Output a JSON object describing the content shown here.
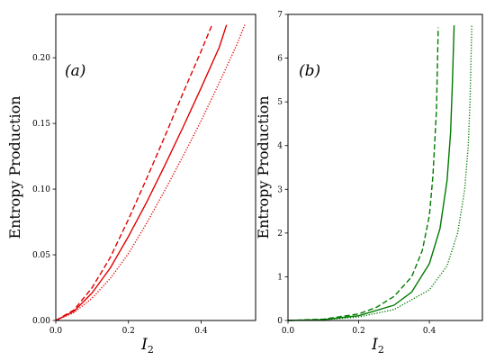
{
  "chart_data": [
    {
      "type": "line",
      "panel_label": "(a)",
      "xlabel": "I2",
      "xlabel_main": "I",
      "xlabel_sub": "2",
      "ylabel": "Entropy Production",
      "xlim": [
        0.0,
        0.55
      ],
      "ylim": [
        0.0,
        0.233
      ],
      "xticks": [
        0.0,
        0.2,
        0.4
      ],
      "xtick_labels": [
        "0.0",
        "0.2",
        "0.4"
      ],
      "yticks": [
        0.0,
        0.05,
        0.1,
        0.15,
        0.2
      ],
      "ytick_labels": [
        "0.00",
        "0.05",
        "0.10",
        "0.15",
        "0.20"
      ],
      "color": "#e00000",
      "series": [
        {
          "style": "dashed",
          "x": [
            0.0,
            0.05,
            0.1,
            0.15,
            0.2,
            0.25,
            0.3,
            0.35,
            0.4,
            0.43
          ],
          "y": [
            0.0,
            0.008,
            0.025,
            0.048,
            0.077,
            0.108,
            0.14,
            0.173,
            0.205,
            0.225
          ]
        },
        {
          "style": "solid",
          "x": [
            0.0,
            0.05,
            0.1,
            0.15,
            0.2,
            0.25,
            0.3,
            0.35,
            0.4,
            0.45,
            0.47
          ],
          "y": [
            0.0,
            0.007,
            0.021,
            0.04,
            0.064,
            0.09,
            0.118,
            0.147,
            0.177,
            0.208,
            0.225
          ]
        },
        {
          "style": "dotted",
          "x": [
            0.0,
            0.05,
            0.1,
            0.15,
            0.2,
            0.25,
            0.3,
            0.35,
            0.4,
            0.45,
            0.5,
            0.52
          ],
          "y": [
            0.0,
            0.006,
            0.017,
            0.032,
            0.051,
            0.074,
            0.099,
            0.125,
            0.152,
            0.181,
            0.211,
            0.225
          ]
        }
      ]
    },
    {
      "type": "line",
      "panel_label": "(b)",
      "xlabel": "I2",
      "xlabel_main": "I",
      "xlabel_sub": "2",
      "ylabel": "Entropy Production",
      "xlim": [
        0.0,
        0.55
      ],
      "ylim": [
        0.0,
        7.0
      ],
      "xticks": [
        0.0,
        0.2,
        0.4
      ],
      "xtick_labels": [
        "0.0",
        "0.2",
        "0.4"
      ],
      "yticks": [
        0,
        1,
        2,
        3,
        4,
        5,
        6,
        7
      ],
      "ytick_labels": [
        "0",
        "1",
        "2",
        "3",
        "4",
        "5",
        "6",
        "7"
      ],
      "color": "#007a00",
      "series": [
        {
          "style": "dashed",
          "x": [
            0.0,
            0.1,
            0.2,
            0.25,
            0.3,
            0.35,
            0.38,
            0.4,
            0.41,
            0.42,
            0.425
          ],
          "y": [
            0.0,
            0.03,
            0.15,
            0.3,
            0.55,
            1.0,
            1.6,
            2.4,
            3.3,
            4.8,
            6.7
          ]
        },
        {
          "style": "solid",
          "x": [
            0.0,
            0.1,
            0.2,
            0.3,
            0.35,
            0.4,
            0.43,
            0.45,
            0.46,
            0.465,
            0.47
          ],
          "y": [
            0.0,
            0.02,
            0.11,
            0.35,
            0.65,
            1.3,
            2.1,
            3.2,
            4.3,
            5.4,
            6.75
          ]
        },
        {
          "style": "dotted",
          "x": [
            0.0,
            0.1,
            0.2,
            0.3,
            0.4,
            0.45,
            0.48,
            0.5,
            0.51,
            0.515,
            0.52
          ],
          "y": [
            0.0,
            0.015,
            0.08,
            0.25,
            0.7,
            1.25,
            2.0,
            3.0,
            4.0,
            5.0,
            6.75
          ]
        }
      ]
    }
  ]
}
